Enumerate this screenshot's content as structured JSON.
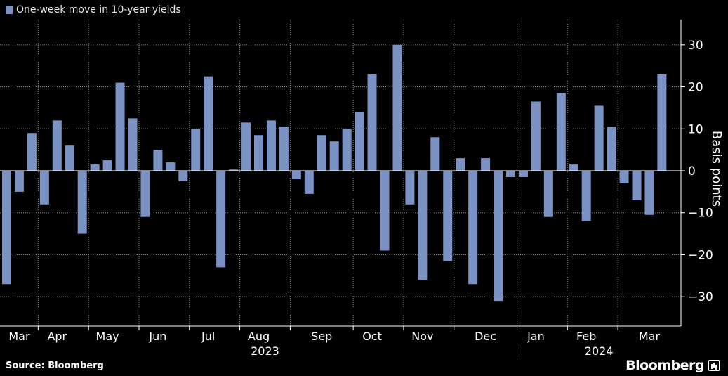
{
  "legend": {
    "label": "One-week move in 10-year yields",
    "color": "#7b93c4"
  },
  "source": "Source: Bloomberg",
  "brand": "Bloomberg",
  "colors": {
    "bar": "#7b93c4",
    "background": "#000000",
    "grid": "#8c8c8c",
    "text": "#ffffff"
  },
  "chart_data": {
    "type": "bar",
    "title": "",
    "xlabel": "",
    "ylabel": "Basis points",
    "ylim": [
      -37,
      36
    ],
    "yticks": [
      -30,
      -20,
      -10,
      0,
      10,
      20,
      30
    ],
    "grid": true,
    "legend_position": "top-left",
    "series": [
      {
        "name": "One-week move in 10-year yields",
        "values": [
          -27,
          -5,
          9,
          -8,
          12,
          6,
          -15,
          1.5,
          2.5,
          21,
          12.5,
          -11,
          5,
          2,
          -2.5,
          10,
          22.5,
          -23,
          0.3,
          11.5,
          8.5,
          12,
          10.5,
          -2,
          -5.5,
          8.5,
          7,
          10,
          14,
          23,
          -19,
          30,
          -8,
          -26,
          8,
          -21.5,
          3,
          -27,
          3,
          -31,
          -1.5,
          -1.5,
          16.5,
          -11,
          18.5,
          1.5,
          -12,
          15.5,
          10.5,
          -3,
          -7,
          -10.5,
          23
        ]
      }
    ],
    "month_labels": [
      "Mar",
      "Apr",
      "May",
      "Jun",
      "Jul",
      "Aug",
      "Sep",
      "Oct",
      "Nov",
      "Dec",
      "Jan",
      "Feb",
      "Mar"
    ],
    "month_bar_index": [
      1,
      4,
      8,
      12,
      16,
      20,
      25,
      29,
      33,
      38,
      42,
      46,
      51
    ],
    "month_boundaries": [
      2.5,
      6.5,
      10.5,
      14.5,
      18.5,
      22.5,
      27.5,
      31.5,
      35.5,
      40.5,
      44.5,
      48.5
    ],
    "year_labels": [
      "2023",
      "2024"
    ],
    "year_bar_index": [
      20.5,
      47
    ],
    "year_boundary": 41
  }
}
